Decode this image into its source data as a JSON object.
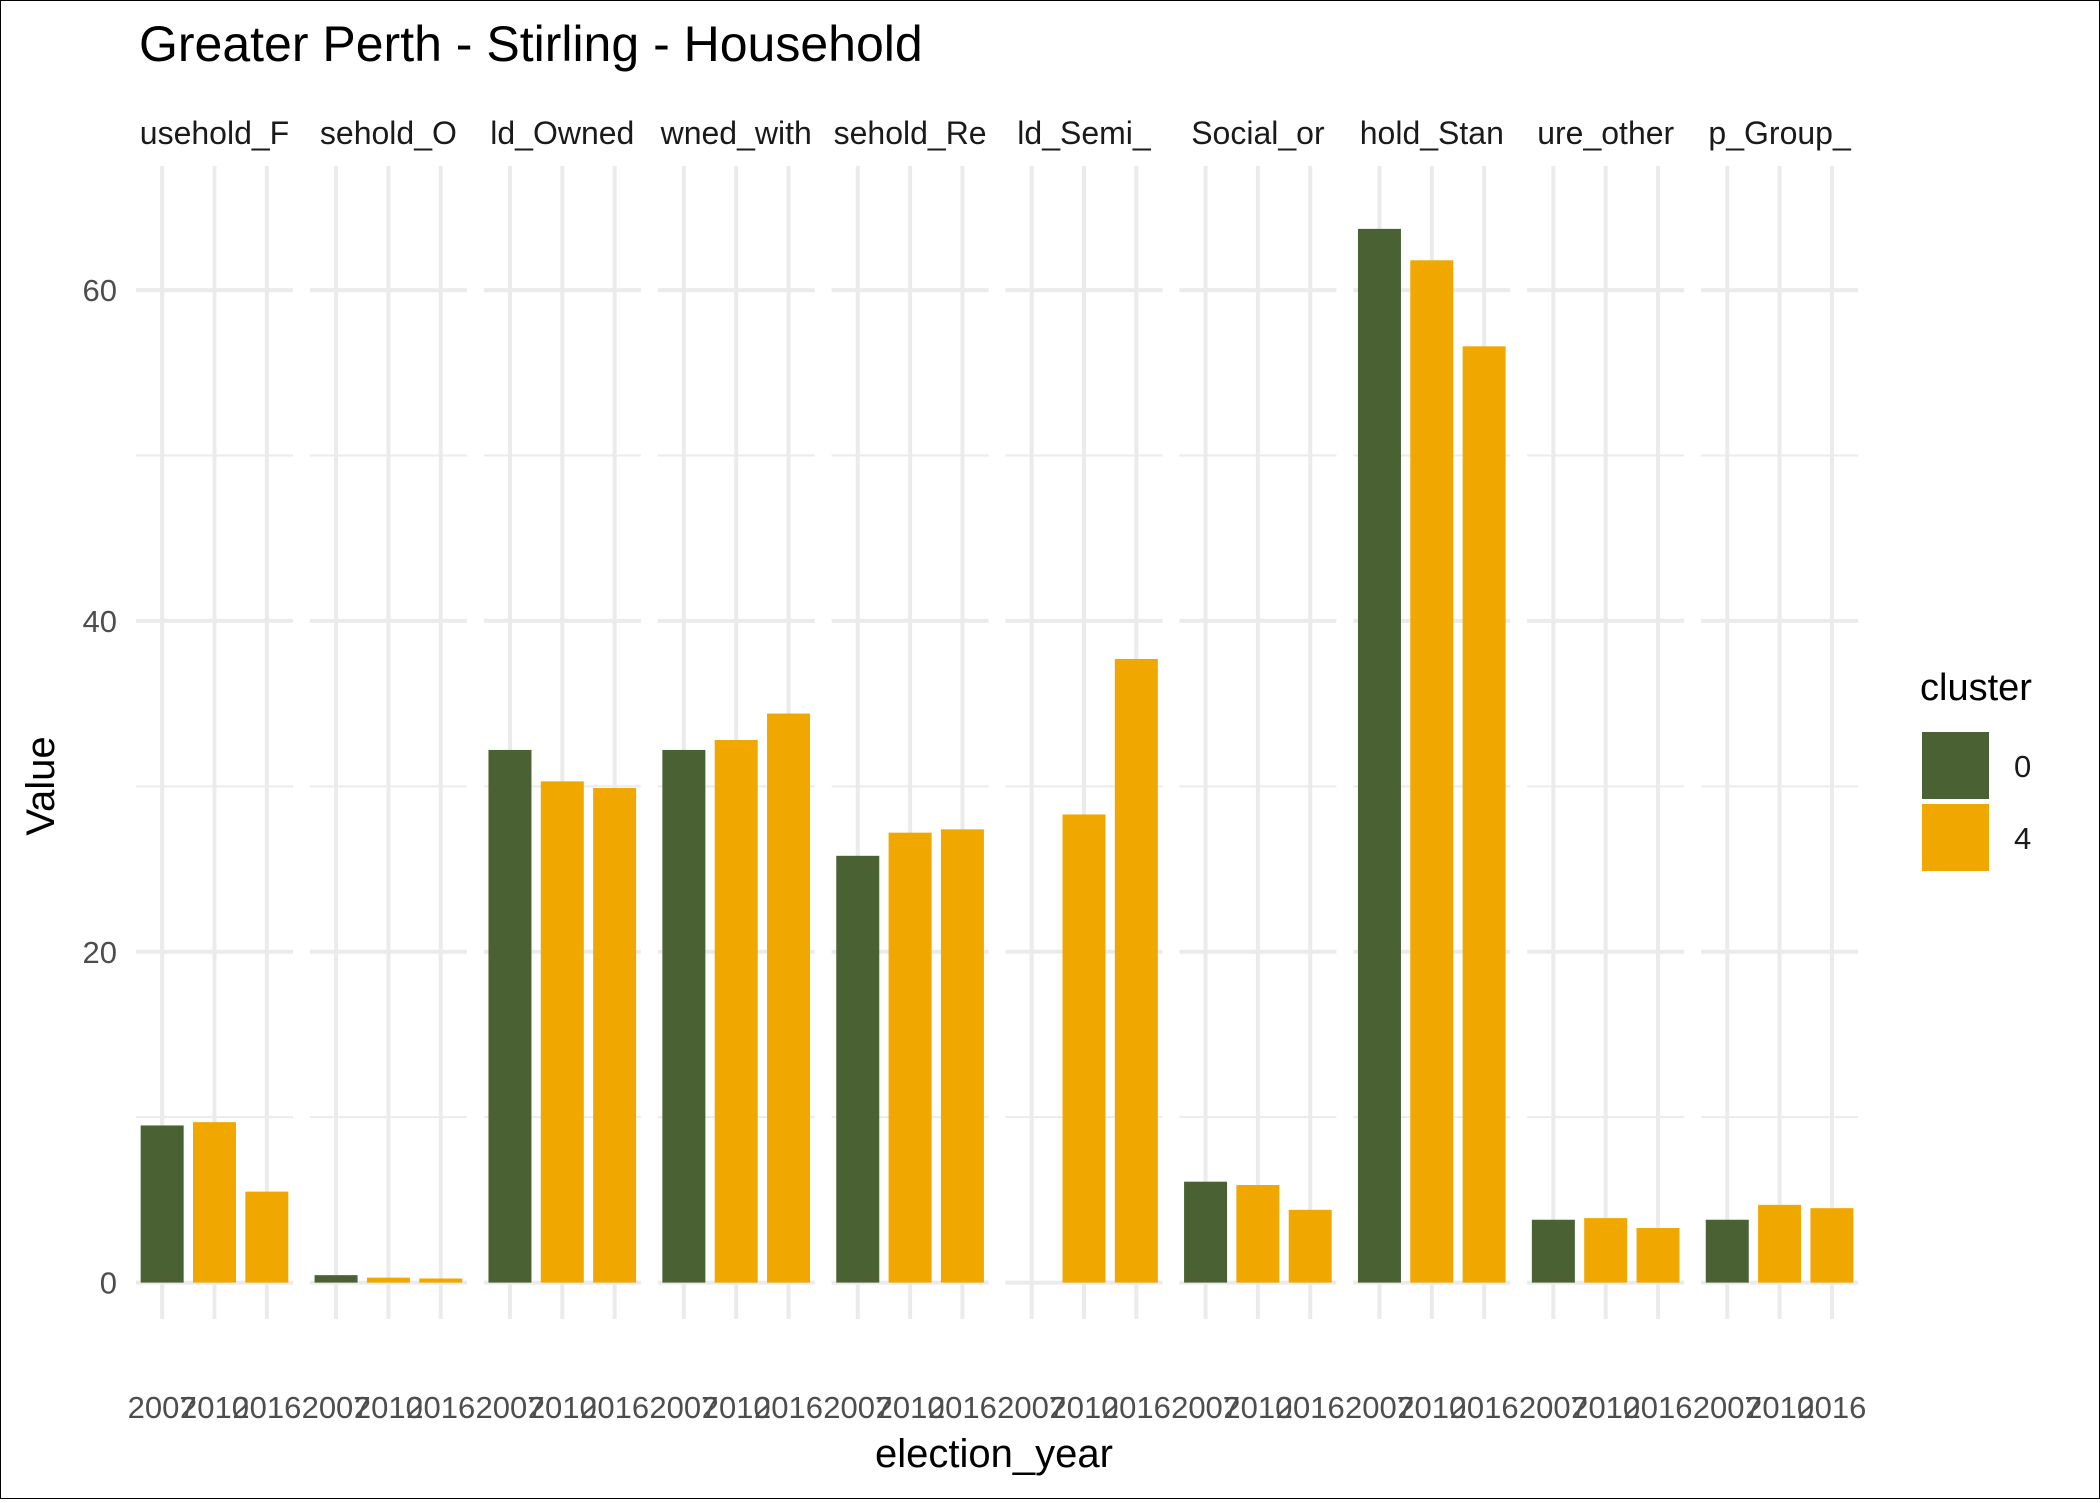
{
  "chart_data": {
    "type": "bar",
    "title": "Greater Perth - Stirling - Household",
    "xlabel": "election_year",
    "ylabel": "Value",
    "ylim": [
      -2.2,
      67.5
    ],
    "y_ticks": [
      0,
      20,
      40,
      60
    ],
    "grid": true,
    "legend": {
      "title": "cluster",
      "placement": "right",
      "entries": [
        {
          "label": "0",
          "color": "#4A6133"
        },
        {
          "label": "4",
          "color": "#F0A800"
        }
      ]
    },
    "panels": [
      {
        "label": "usehold_F",
        "bars": [
          {
            "x": "2007",
            "cluster": "0",
            "value": 9.5
          },
          {
            "x": "2010",
            "cluster": "4",
            "value": 9.7
          },
          {
            "x": "2016",
            "cluster": "4",
            "value": 5.5
          }
        ]
      },
      {
        "label": "sehold_O",
        "bars": [
          {
            "x": "2007",
            "cluster": "0",
            "value": 0.45
          },
          {
            "x": "2010",
            "cluster": "4",
            "value": 0.3
          },
          {
            "x": "2016",
            "cluster": "4",
            "value": 0.25
          }
        ]
      },
      {
        "label": "ld_Owned",
        "bars": [
          {
            "x": "2007",
            "cluster": "0",
            "value": 32.2
          },
          {
            "x": "2010",
            "cluster": "4",
            "value": 30.3
          },
          {
            "x": "2016",
            "cluster": "4",
            "value": 29.9
          }
        ]
      },
      {
        "label": "wned_with",
        "bars": [
          {
            "x": "2007",
            "cluster": "0",
            "value": 32.2
          },
          {
            "x": "2010",
            "cluster": "4",
            "value": 32.8
          },
          {
            "x": "2016",
            "cluster": "4",
            "value": 34.4
          }
        ]
      },
      {
        "label": "sehold_Re",
        "bars": [
          {
            "x": "2007",
            "cluster": "0",
            "value": 25.8
          },
          {
            "x": "2010",
            "cluster": "4",
            "value": 27.2
          },
          {
            "x": "2016",
            "cluster": "4",
            "value": 27.4
          }
        ]
      },
      {
        "label": "ld_Semi_",
        "bars": [
          {
            "x": "2010",
            "cluster": "4",
            "value": 28.3
          },
          {
            "x": "2016",
            "cluster": "4",
            "value": 37.7
          }
        ]
      },
      {
        "label": "Social_or",
        "bars": [
          {
            "x": "2007",
            "cluster": "0",
            "value": 6.1
          },
          {
            "x": "2010",
            "cluster": "4",
            "value": 5.9
          },
          {
            "x": "2016",
            "cluster": "4",
            "value": 4.4
          }
        ]
      },
      {
        "label": "hold_Stan",
        "bars": [
          {
            "x": "2007",
            "cluster": "0",
            "value": 63.7
          },
          {
            "x": "2010",
            "cluster": "4",
            "value": 61.8
          },
          {
            "x": "2016",
            "cluster": "4",
            "value": 56.6
          }
        ]
      },
      {
        "label": "ure_other",
        "bars": [
          {
            "x": "2007",
            "cluster": "0",
            "value": 3.8
          },
          {
            "x": "2010",
            "cluster": "4",
            "value": 3.9
          },
          {
            "x": "2016",
            "cluster": "4",
            "value": 3.3
          }
        ]
      },
      {
        "label": "p_Group_",
        "bars": [
          {
            "x": "2007",
            "cluster": "0",
            "value": 3.8
          },
          {
            "x": "2010",
            "cluster": "4",
            "value": 4.7
          },
          {
            "x": "2016",
            "cluster": "4",
            "value": 4.5
          }
        ]
      }
    ],
    "x_tick_labels": [
      "2007",
      "2010",
      "2016"
    ]
  }
}
